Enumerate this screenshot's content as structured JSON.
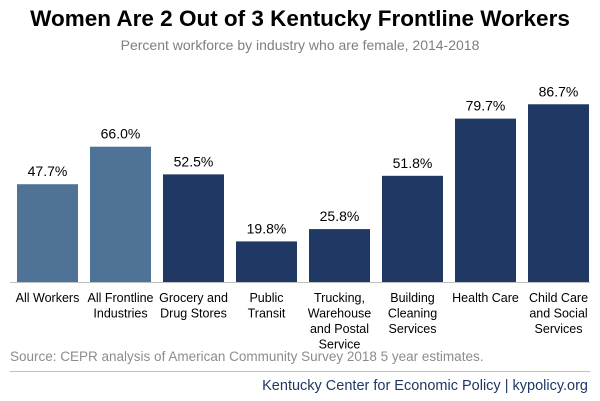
{
  "header": {
    "title": "Women Are 2 Out of 3 Kentucky Frontline Workers",
    "subtitle": "Percent workforce by industry who are female, 2014-2018"
  },
  "chart_data": {
    "type": "bar",
    "categories": [
      "All Workers",
      "All Frontline Industries",
      "Grocery and Drug Stores",
      "Public Transit",
      "Trucking, Warehouse and Postal Service",
      "Building Cleaning Services",
      "Health Care",
      "Child Care and Social Services"
    ],
    "category_lines": [
      [
        "All Workers"
      ],
      [
        "All Frontline",
        "Industries"
      ],
      [
        "Grocery and",
        "Drug Stores"
      ],
      [
        "Public",
        "Transit"
      ],
      [
        "Trucking,",
        "Warehouse",
        "and Postal",
        "Service"
      ],
      [
        "Building",
        "Cleaning",
        "Services"
      ],
      [
        "Health Care"
      ],
      [
        "Child Care",
        "and Social",
        "Services"
      ]
    ],
    "values": [
      47.7,
      66.0,
      52.5,
      19.8,
      25.8,
      51.8,
      79.7,
      86.7
    ],
    "value_labels": [
      "47.7%",
      "66.0%",
      "52.5%",
      "19.8%",
      "25.8%",
      "51.8%",
      "79.7%",
      "86.7%"
    ],
    "bar_colors": [
      "#4f7297",
      "#4f7297",
      "#1f3864",
      "#1f3864",
      "#1f3864",
      "#1f3864",
      "#1f3864",
      "#1f3864"
    ],
    "ylim": [
      0,
      100
    ],
    "grid": false,
    "legend": "none"
  },
  "footer": {
    "source": "Source: CEPR analysis of American Community Survey 2018 5 year estimates.",
    "credit": "Kentucky Center for Economic Policy | kypolicy.org"
  }
}
